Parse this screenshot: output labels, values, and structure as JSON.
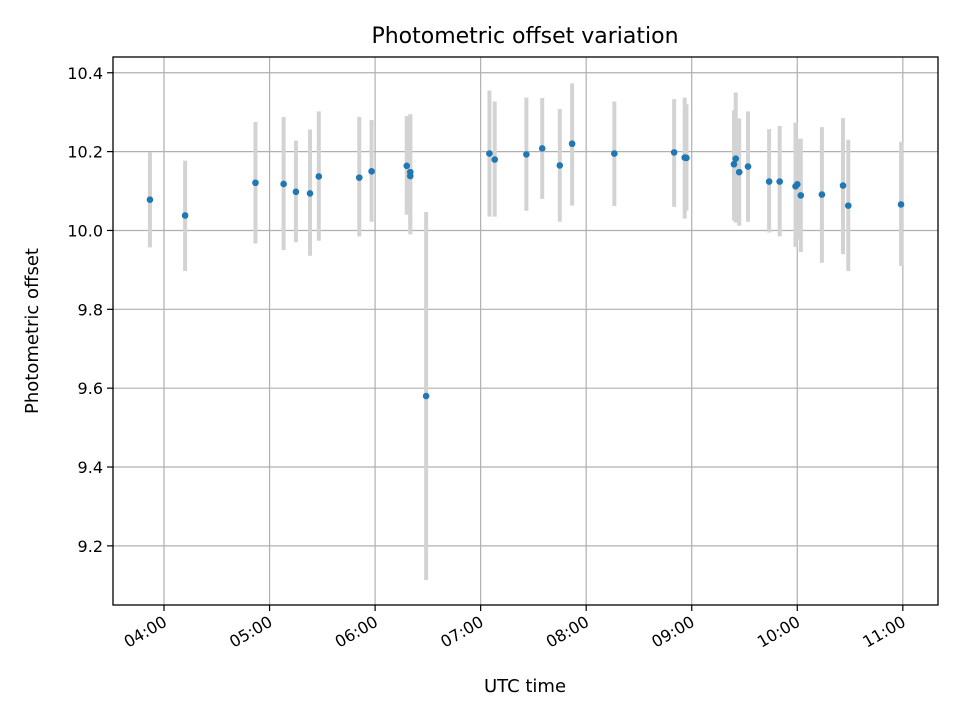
{
  "chart_data": {
    "type": "scatter",
    "title": "Photometric offset variation",
    "xlabel": "UTC time",
    "ylabel": "Photometric offset",
    "x_tick_labels": [
      "04:00",
      "05:00",
      "06:00",
      "07:00",
      "08:00",
      "09:00",
      "10:00",
      "11:00"
    ],
    "y_tick_labels": [
      "9.2",
      "9.4",
      "9.6",
      "9.8",
      "10.0",
      "10.2",
      "10.4"
    ],
    "xlim": [
      "03:31",
      "11:20"
    ],
    "ylim": [
      9.05,
      10.44
    ],
    "grid": true,
    "colors": {
      "point": "#1f77b4",
      "error_bar": "#d3d3d3",
      "grid": "#b0b0b0",
      "axes": "#000000"
    },
    "points": [
      {
        "t": "03:52",
        "y": 10.078,
        "ylo": 9.957,
        "yhi": 10.199
      },
      {
        "t": "04:12",
        "y": 10.038,
        "ylo": 9.897,
        "yhi": 10.177
      },
      {
        "t": "04:52",
        "y": 10.121,
        "ylo": 9.967,
        "yhi": 10.275
      },
      {
        "t": "05:08",
        "y": 10.118,
        "ylo": 9.95,
        "yhi": 10.288
      },
      {
        "t": "05:15",
        "y": 10.098,
        "ylo": 9.97,
        "yhi": 10.228
      },
      {
        "t": "05:23",
        "y": 10.094,
        "ylo": 9.936,
        "yhi": 10.256
      },
      {
        "t": "05:28",
        "y": 10.137,
        "ylo": 9.974,
        "yhi": 10.302
      },
      {
        "t": "05:51",
        "y": 10.134,
        "ylo": 9.985,
        "yhi": 10.288
      },
      {
        "t": "05:58",
        "y": 10.15,
        "ylo": 10.022,
        "yhi": 10.28
      },
      {
        "t": "06:18",
        "y": 10.164,
        "ylo": 10.04,
        "yhi": 10.29
      },
      {
        "t": "06:20",
        "y": 10.148,
        "ylo": 10.0,
        "yhi": 10.295
      },
      {
        "t": "06:20",
        "y": 10.138,
        "ylo": 9.99,
        "yhi": 10.288
      },
      {
        "t": "06:29",
        "y": 9.58,
        "ylo": 9.113,
        "yhi": 10.047
      },
      {
        "t": "07:05",
        "y": 10.195,
        "ylo": 10.035,
        "yhi": 10.355
      },
      {
        "t": "07:08",
        "y": 10.18,
        "ylo": 10.035,
        "yhi": 10.327
      },
      {
        "t": "07:26",
        "y": 10.193,
        "ylo": 10.05,
        "yhi": 10.337
      },
      {
        "t": "07:35",
        "y": 10.208,
        "ylo": 10.08,
        "yhi": 10.336
      },
      {
        "t": "07:45",
        "y": 10.165,
        "ylo": 10.022,
        "yhi": 10.308
      },
      {
        "t": "07:52",
        "y": 10.22,
        "ylo": 10.063,
        "yhi": 10.373
      },
      {
        "t": "08:16",
        "y": 10.195,
        "ylo": 10.062,
        "yhi": 10.327
      },
      {
        "t": "08:50",
        "y": 10.198,
        "ylo": 10.06,
        "yhi": 10.333
      },
      {
        "t": "08:56",
        "y": 10.185,
        "ylo": 10.03,
        "yhi": 10.337
      },
      {
        "t": "08:57",
        "y": 10.184,
        "ylo": 10.05,
        "yhi": 10.32
      },
      {
        "t": "09:24",
        "y": 10.168,
        "ylo": 10.025,
        "yhi": 10.305
      },
      {
        "t": "09:25",
        "y": 10.182,
        "ylo": 10.02,
        "yhi": 10.35
      },
      {
        "t": "09:27",
        "y": 10.148,
        "ylo": 10.012,
        "yhi": 10.284
      },
      {
        "t": "09:32",
        "y": 10.162,
        "ylo": 10.022,
        "yhi": 10.302
      },
      {
        "t": "09:44",
        "y": 10.124,
        "ylo": 9.995,
        "yhi": 10.257
      },
      {
        "t": "09:50",
        "y": 10.124,
        "ylo": 9.985,
        "yhi": 10.265
      },
      {
        "t": "09:59",
        "y": 10.112,
        "ylo": 9.958,
        "yhi": 10.274
      },
      {
        "t": "10:00",
        "y": 10.117,
        "ylo": 9.977,
        "yhi": 10.232
      },
      {
        "t": "10:02",
        "y": 10.089,
        "ylo": 9.945,
        "yhi": 10.233
      },
      {
        "t": "10:14",
        "y": 10.091,
        "ylo": 9.918,
        "yhi": 10.262
      },
      {
        "t": "10:26",
        "y": 10.114,
        "ylo": 9.94,
        "yhi": 10.285
      },
      {
        "t": "10:29",
        "y": 10.063,
        "ylo": 9.897,
        "yhi": 10.23
      },
      {
        "t": "10:59",
        "y": 10.066,
        "ylo": 9.91,
        "yhi": 10.225
      }
    ]
  }
}
